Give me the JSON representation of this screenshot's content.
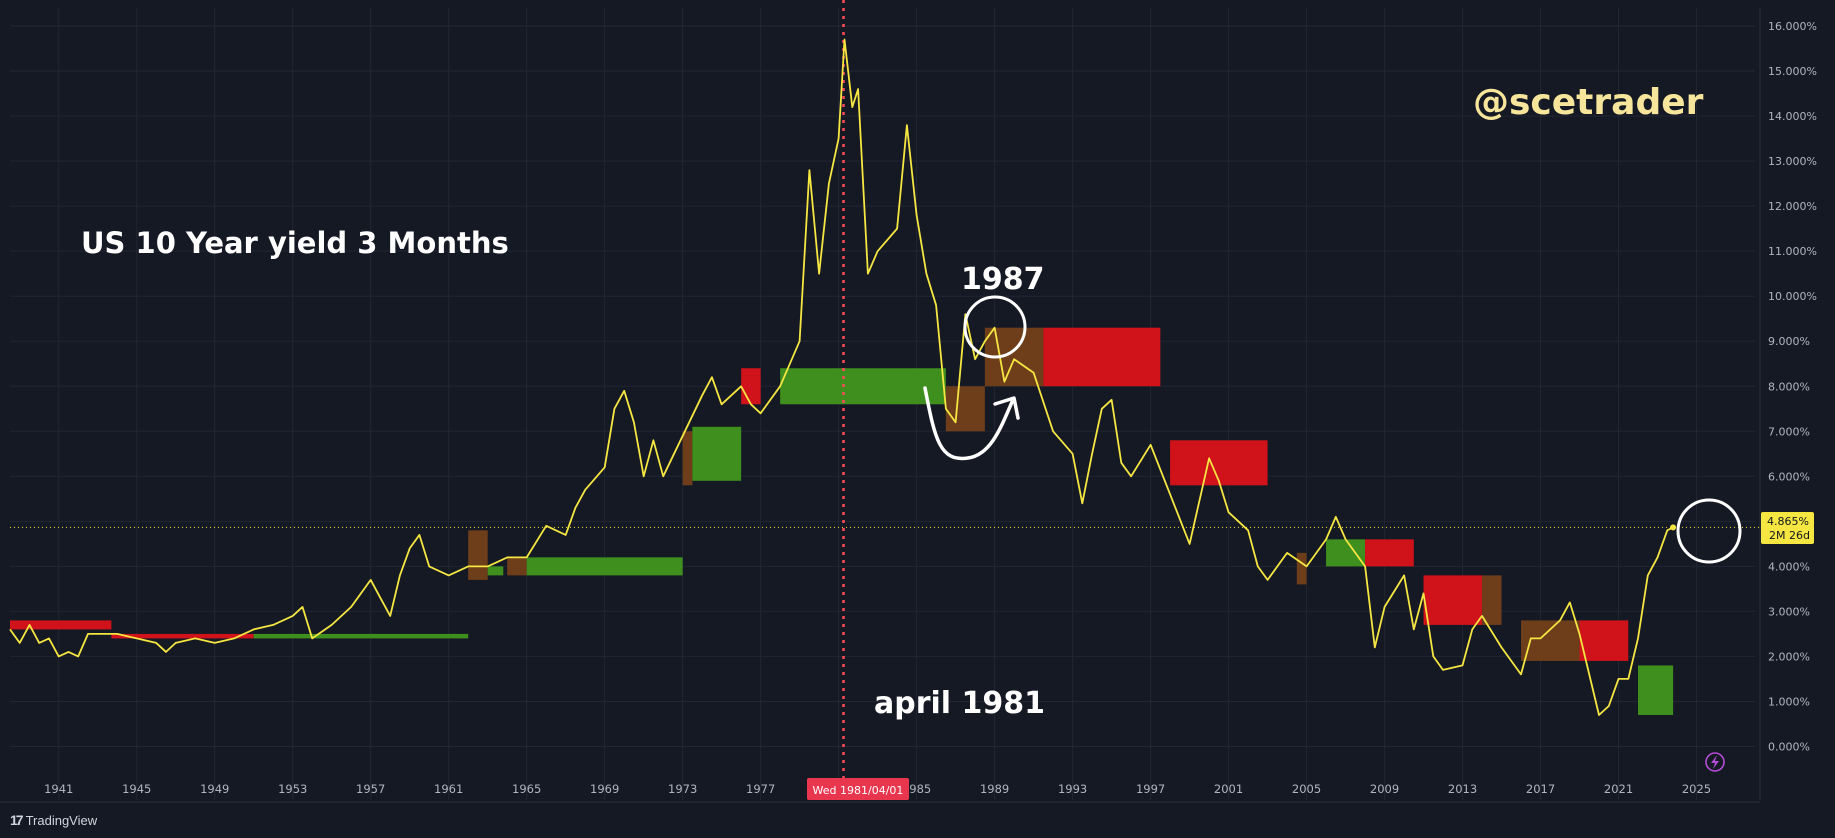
{
  "watermark": "@scetrader",
  "annotations": {
    "title": "US 10 Year yield 3 Months",
    "label_1987": "1987",
    "label_april": "april 1981"
  },
  "price_tag": {
    "value": "4.865%",
    "countdown": "2M 26d"
  },
  "crosshair_date": "Wed 1981/04/01",
  "brand": "TradingView",
  "colors": {
    "background": "#151924",
    "line": "#f5e642",
    "bull": "#3f8f1e",
    "bear": "#d0121b",
    "neutral": "#6e3e1a",
    "crosshair": "#ff4a5a"
  },
  "chart_data": {
    "type": "line",
    "title": "US 10 Year yield 3 Months",
    "xlabel": "",
    "ylabel": "",
    "xlim": [
      1938.5,
      2028
    ],
    "ylim": [
      -0.3,
      16.4
    ],
    "x_ticks": [
      "1941",
      "1945",
      "1949",
      "1953",
      "1957",
      "1961",
      "1965",
      "1969",
      "1973",
      "1977",
      "1981",
      "1985",
      "1989",
      "1993",
      "1997",
      "2001",
      "2005",
      "2009",
      "2013",
      "2017",
      "2021",
      "2025"
    ],
    "y_ticks": [
      "0.000%",
      "1.000%",
      "2.000%",
      "3.000%",
      "4.000%",
      "5.000%",
      "6.000%",
      "7.000%",
      "8.000%",
      "9.000%",
      "10.000%",
      "11.000%",
      "12.000%",
      "13.000%",
      "14.000%",
      "15.000%",
      "16.000%"
    ],
    "grid": true,
    "crosshair_x": 1981.25,
    "current_value": 4.865,
    "series": [
      {
        "values": [
          [
            1938.5,
            2.6
          ],
          [
            1939,
            2.3
          ],
          [
            1939.5,
            2.7
          ],
          [
            1940,
            2.3
          ],
          [
            1940.5,
            2.4
          ],
          [
            1941,
            2.0
          ],
          [
            1941.5,
            2.1
          ],
          [
            1942,
            2.0
          ],
          [
            1942.5,
            2.5
          ],
          [
            1943,
            2.5
          ],
          [
            1944,
            2.5
          ],
          [
            1945,
            2.4
          ],
          [
            1946,
            2.3
          ],
          [
            1946.5,
            2.1
          ],
          [
            1947,
            2.3
          ],
          [
            1948,
            2.4
          ],
          [
            1949,
            2.3
          ],
          [
            1950,
            2.4
          ],
          [
            1951,
            2.6
          ],
          [
            1952,
            2.7
          ],
          [
            1953,
            2.9
          ],
          [
            1953.5,
            3.1
          ],
          [
            1954,
            2.4
          ],
          [
            1955,
            2.7
          ],
          [
            1956,
            3.1
          ],
          [
            1957,
            3.7
          ],
          [
            1957.5,
            3.3
          ],
          [
            1958,
            2.9
          ],
          [
            1958.5,
            3.8
          ],
          [
            1959,
            4.4
          ],
          [
            1959.5,
            4.7
          ],
          [
            1960,
            4.0
          ],
          [
            1961,
            3.8
          ],
          [
            1962,
            4.0
          ],
          [
            1963,
            4.0
          ],
          [
            1964,
            4.2
          ],
          [
            1965,
            4.2
          ],
          [
            1966,
            4.9
          ],
          [
            1967,
            4.7
          ],
          [
            1967.5,
            5.3
          ],
          [
            1968,
            5.7
          ],
          [
            1969,
            6.2
          ],
          [
            1969.5,
            7.5
          ],
          [
            1970,
            7.9
          ],
          [
            1970.5,
            7.2
          ],
          [
            1971,
            6.0
          ],
          [
            1971.5,
            6.8
          ],
          [
            1972,
            6.0
          ],
          [
            1973,
            6.9
          ],
          [
            1974,
            7.8
          ],
          [
            1974.5,
            8.2
          ],
          [
            1975,
            7.6
          ],
          [
            1976,
            8.0
          ],
          [
            1976.5,
            7.6
          ],
          [
            1977,
            7.4
          ],
          [
            1978,
            8.0
          ],
          [
            1978.5,
            8.5
          ],
          [
            1979,
            9.0
          ],
          [
            1979.5,
            12.8
          ],
          [
            1980,
            10.5
          ],
          [
            1980.5,
            12.5
          ],
          [
            1981,
            13.5
          ],
          [
            1981.3,
            15.7
          ],
          [
            1981.7,
            14.2
          ],
          [
            1982,
            14.6
          ],
          [
            1982.5,
            10.5
          ],
          [
            1983,
            11.0
          ],
          [
            1984,
            11.5
          ],
          [
            1984.5,
            13.8
          ],
          [
            1985,
            11.8
          ],
          [
            1985.5,
            10.5
          ],
          [
            1986,
            9.8
          ],
          [
            1986.5,
            7.5
          ],
          [
            1987,
            7.2
          ],
          [
            1987.5,
            9.6
          ],
          [
            1988,
            8.6
          ],
          [
            1988.5,
            9.0
          ],
          [
            1989,
            9.3
          ],
          [
            1989.5,
            8.1
          ],
          [
            1990,
            8.6
          ],
          [
            1991,
            8.3
          ],
          [
            1992,
            7.0
          ],
          [
            1993,
            6.5
          ],
          [
            1993.5,
            5.4
          ],
          [
            1994,
            6.5
          ],
          [
            1994.5,
            7.5
          ],
          [
            1995,
            7.7
          ],
          [
            1995.5,
            6.3
          ],
          [
            1996,
            6.0
          ],
          [
            1997,
            6.7
          ],
          [
            1998,
            5.6
          ],
          [
            1999,
            4.5
          ],
          [
            2000,
            6.4
          ],
          [
            2000.5,
            5.9
          ],
          [
            2001,
            5.2
          ],
          [
            2002,
            4.8
          ],
          [
            2002.5,
            4.0
          ],
          [
            2003,
            3.7
          ],
          [
            2004,
            4.3
          ],
          [
            2005,
            4.0
          ],
          [
            2006,
            4.6
          ],
          [
            2006.5,
            5.1
          ],
          [
            2007,
            4.6
          ],
          [
            2008,
            4.0
          ],
          [
            2008.5,
            2.2
          ],
          [
            2009,
            3.1
          ],
          [
            2010,
            3.8
          ],
          [
            2010.5,
            2.6
          ],
          [
            2011,
            3.4
          ],
          [
            2011.5,
            2.0
          ],
          [
            2012,
            1.7
          ],
          [
            2013,
            1.8
          ],
          [
            2013.5,
            2.6
          ],
          [
            2014,
            2.9
          ],
          [
            2015,
            2.2
          ],
          [
            2016,
            1.6
          ],
          [
            2016.5,
            2.4
          ],
          [
            2017,
            2.4
          ],
          [
            2018,
            2.8
          ],
          [
            2018.5,
            3.2
          ],
          [
            2019,
            2.5
          ],
          [
            2020,
            0.7
          ],
          [
            2020.5,
            0.9
          ],
          [
            2021,
            1.5
          ],
          [
            2021.5,
            1.5
          ],
          [
            2022,
            2.4
          ],
          [
            2022.5,
            3.8
          ],
          [
            2023,
            4.2
          ],
          [
            2023.5,
            4.8
          ],
          [
            2023.8,
            4.865
          ]
        ]
      }
    ],
    "boxes": [
      {
        "x0": 1938.5,
        "x1": 1943.7,
        "y0": 2.6,
        "y1": 2.8,
        "color": "bear"
      },
      {
        "x0": 1943.7,
        "x1": 1951,
        "y0": 2.4,
        "y1": 2.5,
        "color": "bear"
      },
      {
        "x0": 1951,
        "x1": 1962,
        "y0": 2.4,
        "y1": 2.5,
        "color": "bull"
      },
      {
        "x0": 1962,
        "x1": 1963,
        "y0": 3.7,
        "y1": 4.8,
        "color": "neutral"
      },
      {
        "x0": 1963,
        "x1": 1963.8,
        "y0": 3.8,
        "y1": 4.0,
        "color": "bull"
      },
      {
        "x0": 1964,
        "x1": 1965,
        "y0": 3.8,
        "y1": 4.2,
        "color": "neutral"
      },
      {
        "x0": 1965,
        "x1": 1973,
        "y0": 3.8,
        "y1": 4.2,
        "color": "bull"
      },
      {
        "x0": 1973,
        "x1": 1973.5,
        "y0": 5.8,
        "y1": 7.0,
        "color": "neutral"
      },
      {
        "x0": 1973.5,
        "x1": 1976,
        "y0": 5.9,
        "y1": 7.1,
        "color": "bull"
      },
      {
        "x0": 1976,
        "x1": 1977,
        "y0": 7.6,
        "y1": 8.4,
        "color": "bear"
      },
      {
        "x0": 1978,
        "x1": 1986.5,
        "y0": 7.6,
        "y1": 8.4,
        "color": "bull"
      },
      {
        "x0": 1986.5,
        "x1": 1988.5,
        "y0": 7.0,
        "y1": 8.0,
        "color": "neutral"
      },
      {
        "x0": 1988.5,
        "x1": 1991.5,
        "y0": 8.0,
        "y1": 9.3,
        "color": "neutral"
      },
      {
        "x0": 1991.5,
        "x1": 1997.5,
        "y0": 8.0,
        "y1": 9.3,
        "color": "bear"
      },
      {
        "x0": 1998,
        "x1": 2003,
        "y0": 5.8,
        "y1": 6.8,
        "color": "bear"
      },
      {
        "x0": 2004.5,
        "x1": 2005,
        "y0": 3.6,
        "y1": 4.3,
        "color": "neutral"
      },
      {
        "x0": 2006,
        "x1": 2008,
        "y0": 4.0,
        "y1": 4.6,
        "color": "bull"
      },
      {
        "x0": 2008,
        "x1": 2010.5,
        "y0": 4.0,
        "y1": 4.6,
        "color": "bear"
      },
      {
        "x0": 2011,
        "x1": 2014,
        "y0": 2.7,
        "y1": 3.8,
        "color": "bear"
      },
      {
        "x0": 2014,
        "x1": 2015,
        "y0": 2.7,
        "y1": 3.8,
        "color": "neutral"
      },
      {
        "x0": 2016,
        "x1": 2019,
        "y0": 1.9,
        "y1": 2.8,
        "color": "neutral"
      },
      {
        "x0": 2019,
        "x1": 2021.5,
        "y0": 1.9,
        "y1": 2.8,
        "color": "bear"
      },
      {
        "x0": 2022,
        "x1": 2023.8,
        "y0": 0.7,
        "y1": 1.8,
        "color": "bull"
      }
    ]
  }
}
